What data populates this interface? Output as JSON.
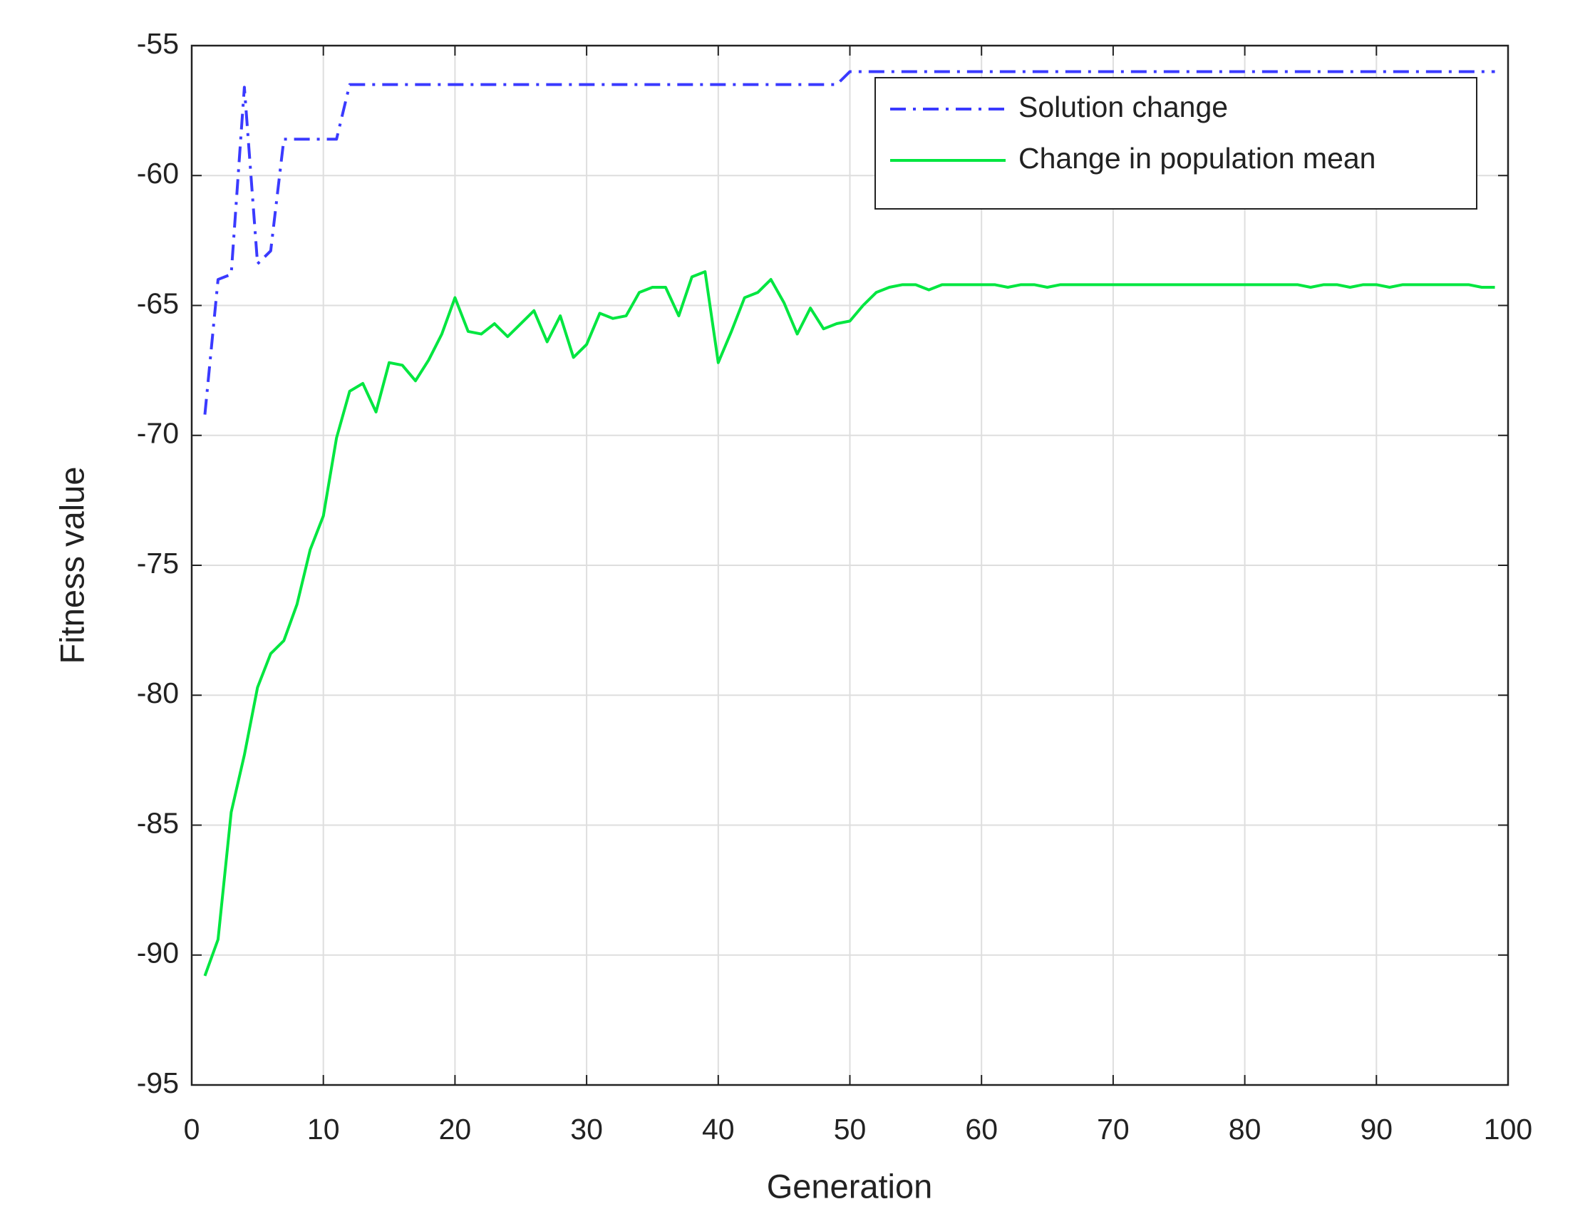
{
  "chart_data": {
    "type": "line",
    "xlabel": "Generation",
    "ylabel": "Fitness value",
    "x": [
      1,
      2,
      3,
      4,
      5,
      6,
      7,
      8,
      9,
      10,
      11,
      12,
      13,
      14,
      15,
      16,
      17,
      18,
      19,
      20,
      21,
      22,
      23,
      24,
      25,
      26,
      27,
      28,
      29,
      30,
      31,
      32,
      33,
      34,
      35,
      36,
      37,
      38,
      39,
      40,
      41,
      42,
      43,
      44,
      45,
      46,
      47,
      48,
      49,
      50,
      51,
      52,
      53,
      54,
      55,
      56,
      57,
      58,
      59,
      60,
      61,
      62,
      63,
      64,
      65,
      66,
      67,
      68,
      69,
      70,
      71,
      72,
      73,
      74,
      75,
      76,
      77,
      78,
      79,
      80,
      81,
      82,
      83,
      84,
      85,
      86,
      87,
      88,
      89,
      90,
      91,
      92,
      93,
      94,
      95,
      96,
      97,
      98,
      99
    ],
    "series": [
      {
        "name": "Solution change",
        "color": "#3a3aff",
        "linestyle": "dashdot",
        "values": [
          -69.2,
          -64.0,
          -63.8,
          -56.6,
          -63.4,
          -62.9,
          -58.6,
          -58.6,
          -58.6,
          -58.6,
          -58.6,
          -56.5,
          -56.5,
          -56.5,
          -56.5,
          -56.5,
          -56.5,
          -56.5,
          -56.5,
          -56.5,
          -56.5,
          -56.5,
          -56.5,
          -56.5,
          -56.5,
          -56.5,
          -56.5,
          -56.5,
          -56.5,
          -56.5,
          -56.5,
          -56.5,
          -56.5,
          -56.5,
          -56.5,
          -56.5,
          -56.5,
          -56.5,
          -56.5,
          -56.5,
          -56.5,
          -56.5,
          -56.5,
          -56.5,
          -56.5,
          -56.5,
          -56.5,
          -56.5,
          -56.5,
          -56.0,
          -56.0,
          -56.0,
          -56.0,
          -56.0,
          -56.0,
          -56.0,
          -56.0,
          -56.0,
          -56.0,
          -56.0,
          -56.0,
          -56.0,
          -56.0,
          -56.0,
          -56.0,
          -56.0,
          -56.0,
          -56.0,
          -56.0,
          -56.0,
          -56.0,
          -56.0,
          -56.0,
          -56.0,
          -56.0,
          -56.0,
          -56.0,
          -56.0,
          -56.0,
          -56.0,
          -56.0,
          -56.0,
          -56.0,
          -56.0,
          -56.0,
          -56.0,
          -56.0,
          -56.0,
          -56.0,
          -56.0,
          -56.0,
          -56.0,
          -56.0,
          -56.0,
          -56.0,
          -56.0,
          -56.0,
          -56.0,
          -56.0
        ]
      },
      {
        "name": "Change in population mean",
        "color": "#00e640",
        "linestyle": "solid",
        "values": [
          -90.8,
          -89.4,
          -84.5,
          -82.3,
          -79.7,
          -78.4,
          -77.9,
          -76.5,
          -74.4,
          -73.1,
          -70.1,
          -68.3,
          -68.0,
          -69.1,
          -67.2,
          -67.3,
          -67.9,
          -67.1,
          -66.1,
          -64.7,
          -66.0,
          -66.1,
          -65.7,
          -66.2,
          -65.7,
          -65.2,
          -66.4,
          -65.4,
          -67.0,
          -66.5,
          -65.3,
          -65.5,
          -65.4,
          -64.5,
          -64.3,
          -64.3,
          -65.4,
          -63.9,
          -63.7,
          -67.2,
          -66.0,
          -64.7,
          -64.5,
          -64.0,
          -64.9,
          -66.1,
          -65.1,
          -65.9,
          -65.7,
          -65.6,
          -65.0,
          -64.5,
          -64.3,
          -64.2,
          -64.2,
          -64.4,
          -64.2,
          -64.2,
          -64.2,
          -64.2,
          -64.2,
          -64.3,
          -64.2,
          -64.2,
          -64.3,
          -64.2,
          -64.2,
          -64.2,
          -64.2,
          -64.2,
          -64.2,
          -64.2,
          -64.2,
          -64.2,
          -64.2,
          -64.2,
          -64.2,
          -64.2,
          -64.2,
          -64.2,
          -64.2,
          -64.2,
          -64.2,
          -64.2,
          -64.3,
          -64.2,
          -64.2,
          -64.3,
          -64.2,
          -64.2,
          -64.3,
          -64.2,
          -64.2,
          -64.2,
          -64.2,
          -64.2,
          -64.2,
          -64.3,
          -64.3
        ]
      }
    ],
    "xlim": [
      0,
      100
    ],
    "xticks": [
      0,
      10,
      20,
      30,
      40,
      50,
      60,
      70,
      80,
      90,
      100
    ],
    "ylim": [
      -95,
      -55
    ],
    "yticks": [
      -95,
      -90,
      -85,
      -80,
      -75,
      -70,
      -65,
      -60,
      -55
    ],
    "grid": true,
    "legend": "upper right"
  }
}
